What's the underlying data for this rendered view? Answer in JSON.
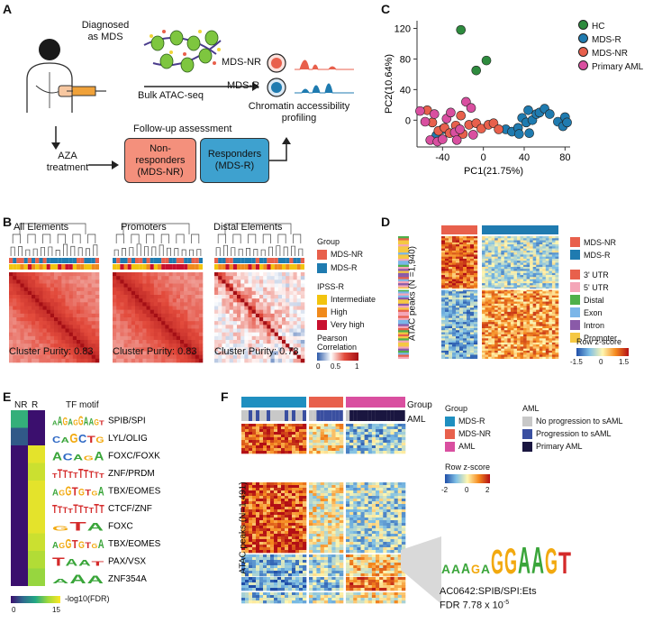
{
  "panelA": {
    "letter": "A",
    "diagnosed": "Diagnosed\nas MDS",
    "bulk": "Bulk ATAC-seq",
    "mds_nr": "MDS-NR",
    "mds_r": "MDS-R",
    "chromatin": "Chromatin accessibility\nprofiling",
    "followup": "Follow-up assessment",
    "aza": "AZA\ntreatment",
    "nonresponders": "Non-\nresponders\n(MDS-NR)",
    "responders": "Responders\n(MDS-R)"
  },
  "panelB": {
    "letter": "B",
    "titles": [
      "All Elements",
      "Promoters",
      "Distal Elements"
    ],
    "purities": [
      "Cluster Purity: 0.83",
      "Cluster Purity: 0.83",
      "Cluster Purity: 0.78"
    ],
    "legend": {
      "group_title": "Group",
      "groups": [
        {
          "label": "MDS-NR",
          "color": "#e8604c"
        },
        {
          "label": "MDS-R",
          "color": "#1f7bb0"
        }
      ],
      "ipss_title": "IPSS-R",
      "ipss": [
        {
          "label": "Intermediate",
          "color": "#f2c40f"
        },
        {
          "label": "High",
          "color": "#f08a1c"
        },
        {
          "label": "Very high",
          "color": "#c8102e"
        }
      ],
      "corr_title": "Pearson\nCorrelation",
      "corr_ticks": [
        "0",
        "0.5",
        "1"
      ]
    }
  },
  "panelC": {
    "letter": "C",
    "legend": [
      {
        "label": "HC",
        "color": "#2e8b3e"
      },
      {
        "label": "MDS-R",
        "color": "#1f7bb0"
      },
      {
        "label": "MDS-NR",
        "color": "#e8604c"
      },
      {
        "label": "Primary AML",
        "color": "#d94fa0"
      }
    ]
  },
  "chart_data": {
    "type": "scatter",
    "title": "",
    "xlabel": "PC1(21.75%)",
    "ylabel": "PC2(10.64%)",
    "xlim": [
      -65,
      85
    ],
    "ylim": [
      -35,
      130
    ],
    "xticks": [
      "-40",
      "0",
      "40",
      "80"
    ],
    "yticks": [
      "0",
      "40",
      "80",
      "120"
    ],
    "series": [
      {
        "name": "HC",
        "color": "#2e8b3e",
        "points": [
          [
            -22,
            118
          ],
          [
            3,
            78
          ],
          [
            -7,
            65
          ]
        ]
      },
      {
        "name": "MDS-R",
        "color": "#1f7bb0",
        "points": [
          [
            22,
            -12
          ],
          [
            28,
            -15
          ],
          [
            34,
            -10
          ],
          [
            38,
            3
          ],
          [
            42,
            -3
          ],
          [
            44,
            13
          ],
          [
            48,
            0
          ],
          [
            52,
            8
          ],
          [
            55,
            10
          ],
          [
            60,
            15
          ],
          [
            65,
            8
          ],
          [
            73,
            -2
          ],
          [
            78,
            -8
          ],
          [
            80,
            4
          ],
          [
            82,
            -3
          ],
          [
            35,
            -18
          ],
          [
            45,
            -17
          ],
          [
            -40,
            -12
          ],
          [
            -46,
            -20
          ]
        ]
      },
      {
        "name": "MDS-NR",
        "color": "#e8604c",
        "points": [
          [
            -55,
            13
          ],
          [
            -50,
            -3
          ],
          [
            -44,
            -14
          ],
          [
            -38,
            -10
          ],
          [
            -33,
            -17
          ],
          [
            -27,
            -7
          ],
          [
            -22,
            6
          ],
          [
            -14,
            -6
          ],
          [
            -7,
            -4
          ],
          [
            -2,
            -11
          ],
          [
            5,
            -6
          ],
          [
            10,
            -4
          ],
          [
            15,
            -12
          ],
          [
            -20,
            -18
          ]
        ]
      },
      {
        "name": "Primary AML",
        "color": "#d94fa0",
        "points": [
          [
            -62,
            12
          ],
          [
            -57,
            -2
          ],
          [
            -52,
            -26
          ],
          [
            -45,
            -28
          ],
          [
            -40,
            -25
          ],
          [
            -36,
            2
          ],
          [
            -32,
            10
          ],
          [
            -28,
            -16
          ],
          [
            -23,
            -12
          ],
          [
            -17,
            24
          ],
          [
            -12,
            16
          ],
          [
            -10,
            -19
          ],
          [
            -26,
            -26
          ],
          [
            -48,
            8
          ]
        ]
      }
    ]
  },
  "panelD": {
    "letter": "D",
    "ylabel": "ATAC peaks (N =1,940)",
    "legend": [
      {
        "label": "MDS-NR",
        "color": "#e8604c"
      },
      {
        "label": "MDS-R",
        "color": "#1f7bb0"
      },
      {
        "label": "3' UTR",
        "color": "#e8604c"
      },
      {
        "label": "5' UTR",
        "color": "#f4a6b8"
      },
      {
        "label": "Distal",
        "color": "#4fb04a"
      },
      {
        "label": "Exon",
        "color": "#7bb6e8"
      },
      {
        "label": "Intron",
        "color": "#8a5aa8"
      },
      {
        "label": "Promoter",
        "color": "#f5c842"
      }
    ],
    "zscore_title": "Row z-score",
    "zscore_ticks": [
      "-1.5",
      "0",
      "1.5"
    ]
  },
  "panelE": {
    "letter": "E",
    "col_labels": [
      "NR",
      "R"
    ],
    "motif_header": "TF motif",
    "motifs": [
      {
        "seq": "AAGAGGAAGT",
        "name": "SPIB/SPI",
        "nr": 8,
        "r": 0
      },
      {
        "seq": "CAGCTG",
        "name": "LYL/OLIG",
        "nr": 3,
        "r": 0
      },
      {
        "seq": "ACAGA",
        "name": "FOXC/FOXK",
        "nr": 0,
        "r": 14
      },
      {
        "seq": "TTTTTTTTTT",
        "name": "ZNF/PRDM",
        "nr": 0,
        "r": 13
      },
      {
        "seq": "AGGTGTGA",
        "name": "TBX/EOMES",
        "nr": 0,
        "r": 14
      },
      {
        "seq": "TTTTTTTTTT",
        "name": "CTCF/ZNF",
        "nr": 0,
        "r": 14
      },
      {
        "seq": "GTA",
        "name": "FOXC",
        "nr": 0,
        "r": 14
      },
      {
        "seq": "AGGTGTGA",
        "name": "TBX/EOMES",
        "nr": 0,
        "r": 13
      },
      {
        "seq": "TAAT",
        "name": "PAX/VSX",
        "nr": 0,
        "r": 12
      },
      {
        "seq": "AAA",
        "name": "ZNF354A",
        "nr": 0,
        "r": 11
      }
    ],
    "scale_label": "-log10(FDR)",
    "scale_ticks": [
      "0",
      "15"
    ]
  },
  "panelF": {
    "letter": "F",
    "group_row": "Group",
    "aml_row": "AML",
    "ylabel": "ATAC peaks (N=1,491)",
    "group_title": "Group",
    "groups": [
      {
        "label": "MDS-R",
        "color": "#1f8fc0"
      },
      {
        "label": "MDS-NR",
        "color": "#e8604c"
      },
      {
        "label": "AML",
        "color": "#d94fa0"
      }
    ],
    "aml_title": "AML",
    "aml_items": [
      {
        "label": "No progression to sAML",
        "color": "#c8c8c8"
      },
      {
        "label": "Progression to sAML",
        "color": "#3a4fa0"
      },
      {
        "label": "Primary AML",
        "color": "#1a1640"
      }
    ],
    "zscore_title": "Row z-score",
    "zscore_ticks": [
      "-2",
      "0",
      "2"
    ],
    "motif_seq": "AAAGAGGAAGT",
    "motif_id": "AC0642:SPIB/SPI:Ets",
    "fdr": "FDR 7.78 x 10",
    "fdr_exp": "-5"
  }
}
